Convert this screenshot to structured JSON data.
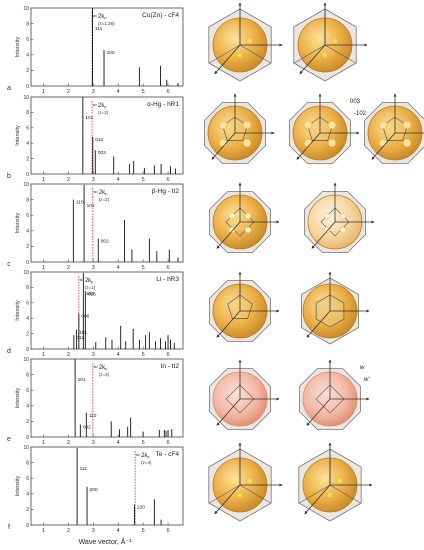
{
  "figure": {
    "x_label": "Wave vector, Å⁻¹"
  },
  "chart_data": [
    {
      "type": "bar",
      "panel_label": "a",
      "title": "Cu(Zn) - cF4",
      "ylabel": "Intensity",
      "xlim": [
        0.5,
        6.6
      ],
      "ylim": [
        0,
        10
      ],
      "x_ticks": [
        1,
        2,
        3,
        4,
        5,
        6
      ],
      "y_ticks": [
        0,
        2,
        4,
        6,
        8,
        10
      ],
      "peaks": [
        {
          "x": 2.97,
          "y": 10,
          "label": "111"
        },
        {
          "x": 3.43,
          "y": 4.6,
          "label": "200"
        },
        {
          "x": 4.85,
          "y": 2.4
        },
        {
          "x": 5.7,
          "y": 2.6
        },
        {
          "x": 5.95,
          "y": 0.8
        },
        {
          "x": 6.4,
          "y": 0.4
        }
      ],
      "kf_line": {
        "x": 2.95,
        "label": "2k",
        "sub": "F",
        "z": "(z=1.36)"
      },
      "annotations": []
    },
    {
      "type": "bar",
      "panel_label": "b",
      "title": "α-Hg - hR1",
      "ylabel": "Intensity",
      "xlim": [
        0.5,
        6.6
      ],
      "ylim": [
        0,
        10
      ],
      "x_ticks": [
        1,
        2,
        3,
        4,
        5,
        6
      ],
      "y_ticks": [
        0,
        2,
        4,
        6,
        8,
        10
      ],
      "peaks": [
        {
          "x": 2.58,
          "y": 10,
          "label": "101"
        },
        {
          "x": 2.98,
          "y": 4.8,
          "label": "012"
        },
        {
          "x": 3.08,
          "y": 3.1,
          "label": "003"
        },
        {
          "x": 3.82,
          "y": 2.3
        },
        {
          "x": 4.45,
          "y": 1.3
        },
        {
          "x": 4.62,
          "y": 1.7
        },
        {
          "x": 5.05,
          "y": 0.8
        },
        {
          "x": 5.45,
          "y": 1.1
        },
        {
          "x": 5.72,
          "y": 1.3
        },
        {
          "x": 6.1,
          "y": 1.0
        },
        {
          "x": 6.3,
          "y": 0.7
        }
      ],
      "kf_line": {
        "x": 2.95,
        "label": "2k",
        "sub": "F",
        "z": "(z=2)"
      },
      "annotations": []
    },
    {
      "type": "bar",
      "panel_label": "c",
      "title": "β-Hg - tI2",
      "ylabel": "Intensity",
      "xlim": [
        0.5,
        6.6
      ],
      "ylim": [
        0,
        10
      ],
      "x_ticks": [
        1,
        2,
        3,
        4,
        5,
        6
      ],
      "y_ticks": [
        0,
        2,
        4,
        6,
        8,
        10
      ],
      "peaks": [
        {
          "x": 2.2,
          "y": 8.0,
          "label": "110"
        },
        {
          "x": 2.63,
          "y": 9.9,
          "label": "101"
        },
        {
          "x": 3.2,
          "y": 3.0,
          "label": "002"
        },
        {
          "x": 4.25,
          "y": 5.4
        },
        {
          "x": 4.55,
          "y": 1.6
        },
        {
          "x": 5.25,
          "y": 3.0
        },
        {
          "x": 5.55,
          "y": 1.4
        },
        {
          "x": 6.05,
          "y": 1.6
        },
        {
          "x": 6.4,
          "y": 0.6
        }
      ],
      "kf_line": {
        "x": 2.98,
        "label": "2k",
        "sub": "F",
        "z": "(z=2)"
      },
      "annotations": []
    },
    {
      "type": "bar",
      "panel_label": "d",
      "title": "Li - hR3",
      "ylabel": "Intensity",
      "xlim": [
        0.5,
        6.6
      ],
      "ylim": [
        0,
        10
      ],
      "x_ticks": [
        1,
        2,
        3,
        4,
        5,
        6
      ],
      "y_ticks": [
        0,
        2,
        4,
        6,
        8,
        10
      ],
      "peaks": [
        {
          "x": 2.22,
          "y": 1.8,
          "label": "012"
        },
        {
          "x": 2.33,
          "y": 2.5,
          "label": "101"
        },
        {
          "x": 2.42,
          "y": 4.6,
          "label": "006"
        },
        {
          "x": 2.6,
          "y": 9.9,
          "label": "104"
        },
        {
          "x": 2.68,
          "y": 7.5,
          "label": "015"
        },
        {
          "x": 3.1,
          "y": 0.9
        },
        {
          "x": 3.5,
          "y": 1.5
        },
        {
          "x": 3.75,
          "y": 1.2
        },
        {
          "x": 4.1,
          "y": 3.0
        },
        {
          "x": 4.3,
          "y": 1.0
        },
        {
          "x": 4.6,
          "y": 2.6
        },
        {
          "x": 4.85,
          "y": 1.2
        },
        {
          "x": 5.1,
          "y": 1.8
        },
        {
          "x": 5.25,
          "y": 2.2
        },
        {
          "x": 5.5,
          "y": 1.0
        },
        {
          "x": 5.7,
          "y": 1.4
        },
        {
          "x": 5.9,
          "y": 1.0
        },
        {
          "x": 6.0,
          "y": 1.8
        },
        {
          "x": 6.1,
          "y": 1.2
        },
        {
          "x": 6.25,
          "y": 0.8
        }
      ],
      "kf_line": {
        "x": 2.42,
        "label": "2k",
        "sub": "F",
        "z": "(z=1)"
      },
      "annotations": []
    },
    {
      "type": "bar",
      "panel_label": "e",
      "title": "In - tI2",
      "ylabel": "Intensity",
      "xlim": [
        0.5,
        6.6
      ],
      "ylim": [
        0,
        10
      ],
      "x_ticks": [
        1,
        2,
        3,
        4,
        5,
        6
      ],
      "y_ticks": [
        0,
        2,
        4,
        6,
        8,
        10
      ],
      "peaks": [
        {
          "x": 2.27,
          "y": 10,
          "label": "101"
        },
        {
          "x": 2.48,
          "y": 1.6,
          "label": "002"
        },
        {
          "x": 2.72,
          "y": 3.1,
          "label": "110"
        },
        {
          "x": 3.72,
          "y": 2.0
        },
        {
          "x": 4.05,
          "y": 1.0
        },
        {
          "x": 4.38,
          "y": 1.3
        },
        {
          "x": 4.5,
          "y": 2.5
        },
        {
          "x": 5.0,
          "y": 0.7
        },
        {
          "x": 5.65,
          "y": 0.9
        },
        {
          "x": 5.85,
          "y": 0.9
        },
        {
          "x": 5.92,
          "y": 0.8
        },
        {
          "x": 6.0,
          "y": 0.9
        },
        {
          "x": 6.15,
          "y": 1.0
        }
      ],
      "kf_line": {
        "x": 2.98,
        "label": "2k",
        "sub": "F",
        "z": "(z=3)"
      },
      "annotations": []
    },
    {
      "type": "bar",
      "panel_label": "f",
      "title": "Te - cF4",
      "ylabel": "Intensity",
      "xlim": [
        0.5,
        6.6
      ],
      "ylim": [
        0,
        10
      ],
      "x_ticks": [
        1,
        2,
        3,
        4,
        5,
        6
      ],
      "y_ticks": [
        0,
        2,
        4,
        6,
        8,
        10
      ],
      "peaks": [
        {
          "x": 2.35,
          "y": 9.9,
          "label": "111"
        },
        {
          "x": 2.75,
          "y": 4.9,
          "label": "200"
        },
        {
          "x": 4.65,
          "y": 2.6,
          "label": "220"
        },
        {
          "x": 5.45,
          "y": 3.3
        },
        {
          "x": 5.72,
          "y": 0.7
        }
      ],
      "kf_line": {
        "x": 4.68,
        "label": "2k",
        "sub": "F",
        "z": "(z=4)"
      },
      "annotations": []
    }
  ],
  "crystal_panels": [
    {
      "panel": "a",
      "shapes": [
        {
          "kind": "truncated-octahedron-sphere",
          "labels": []
        },
        {
          "kind": "truncated-octahedron-sphere",
          "labels": []
        }
      ]
    },
    {
      "panel": "b",
      "shapes": [
        {
          "kind": "rhombohedral-zone-sphere",
          "labels": []
        },
        {
          "kind": "rhombohedral-zone-sphere",
          "labels": [
            "003",
            "-102"
          ]
        },
        {
          "kind": "rhombohedral-zone-sphere",
          "labels": []
        }
      ]
    },
    {
      "panel": "c",
      "shapes": [
        {
          "kind": "tetragonal-zone-sphere",
          "labels": []
        },
        {
          "kind": "tetragonal-zone-sphere-pale",
          "labels": []
        }
      ]
    },
    {
      "panel": "d",
      "shapes": [
        {
          "kind": "rhombohedral-zone-barrel",
          "labels": []
        },
        {
          "kind": "hexagonal-prism-sphere",
          "labels": []
        }
      ]
    },
    {
      "panel": "e",
      "shapes": [
        {
          "kind": "tetragonal-zone-pink-sphere",
          "labels": []
        },
        {
          "kind": "tetragonal-zone-pink-sphere",
          "labels": [
            "w",
            "w'"
          ]
        }
      ]
    },
    {
      "panel": "f",
      "shapes": [
        {
          "kind": "octahedron-sphere",
          "labels": []
        },
        {
          "kind": "octahedron-sphere",
          "labels": []
        }
      ]
    }
  ]
}
